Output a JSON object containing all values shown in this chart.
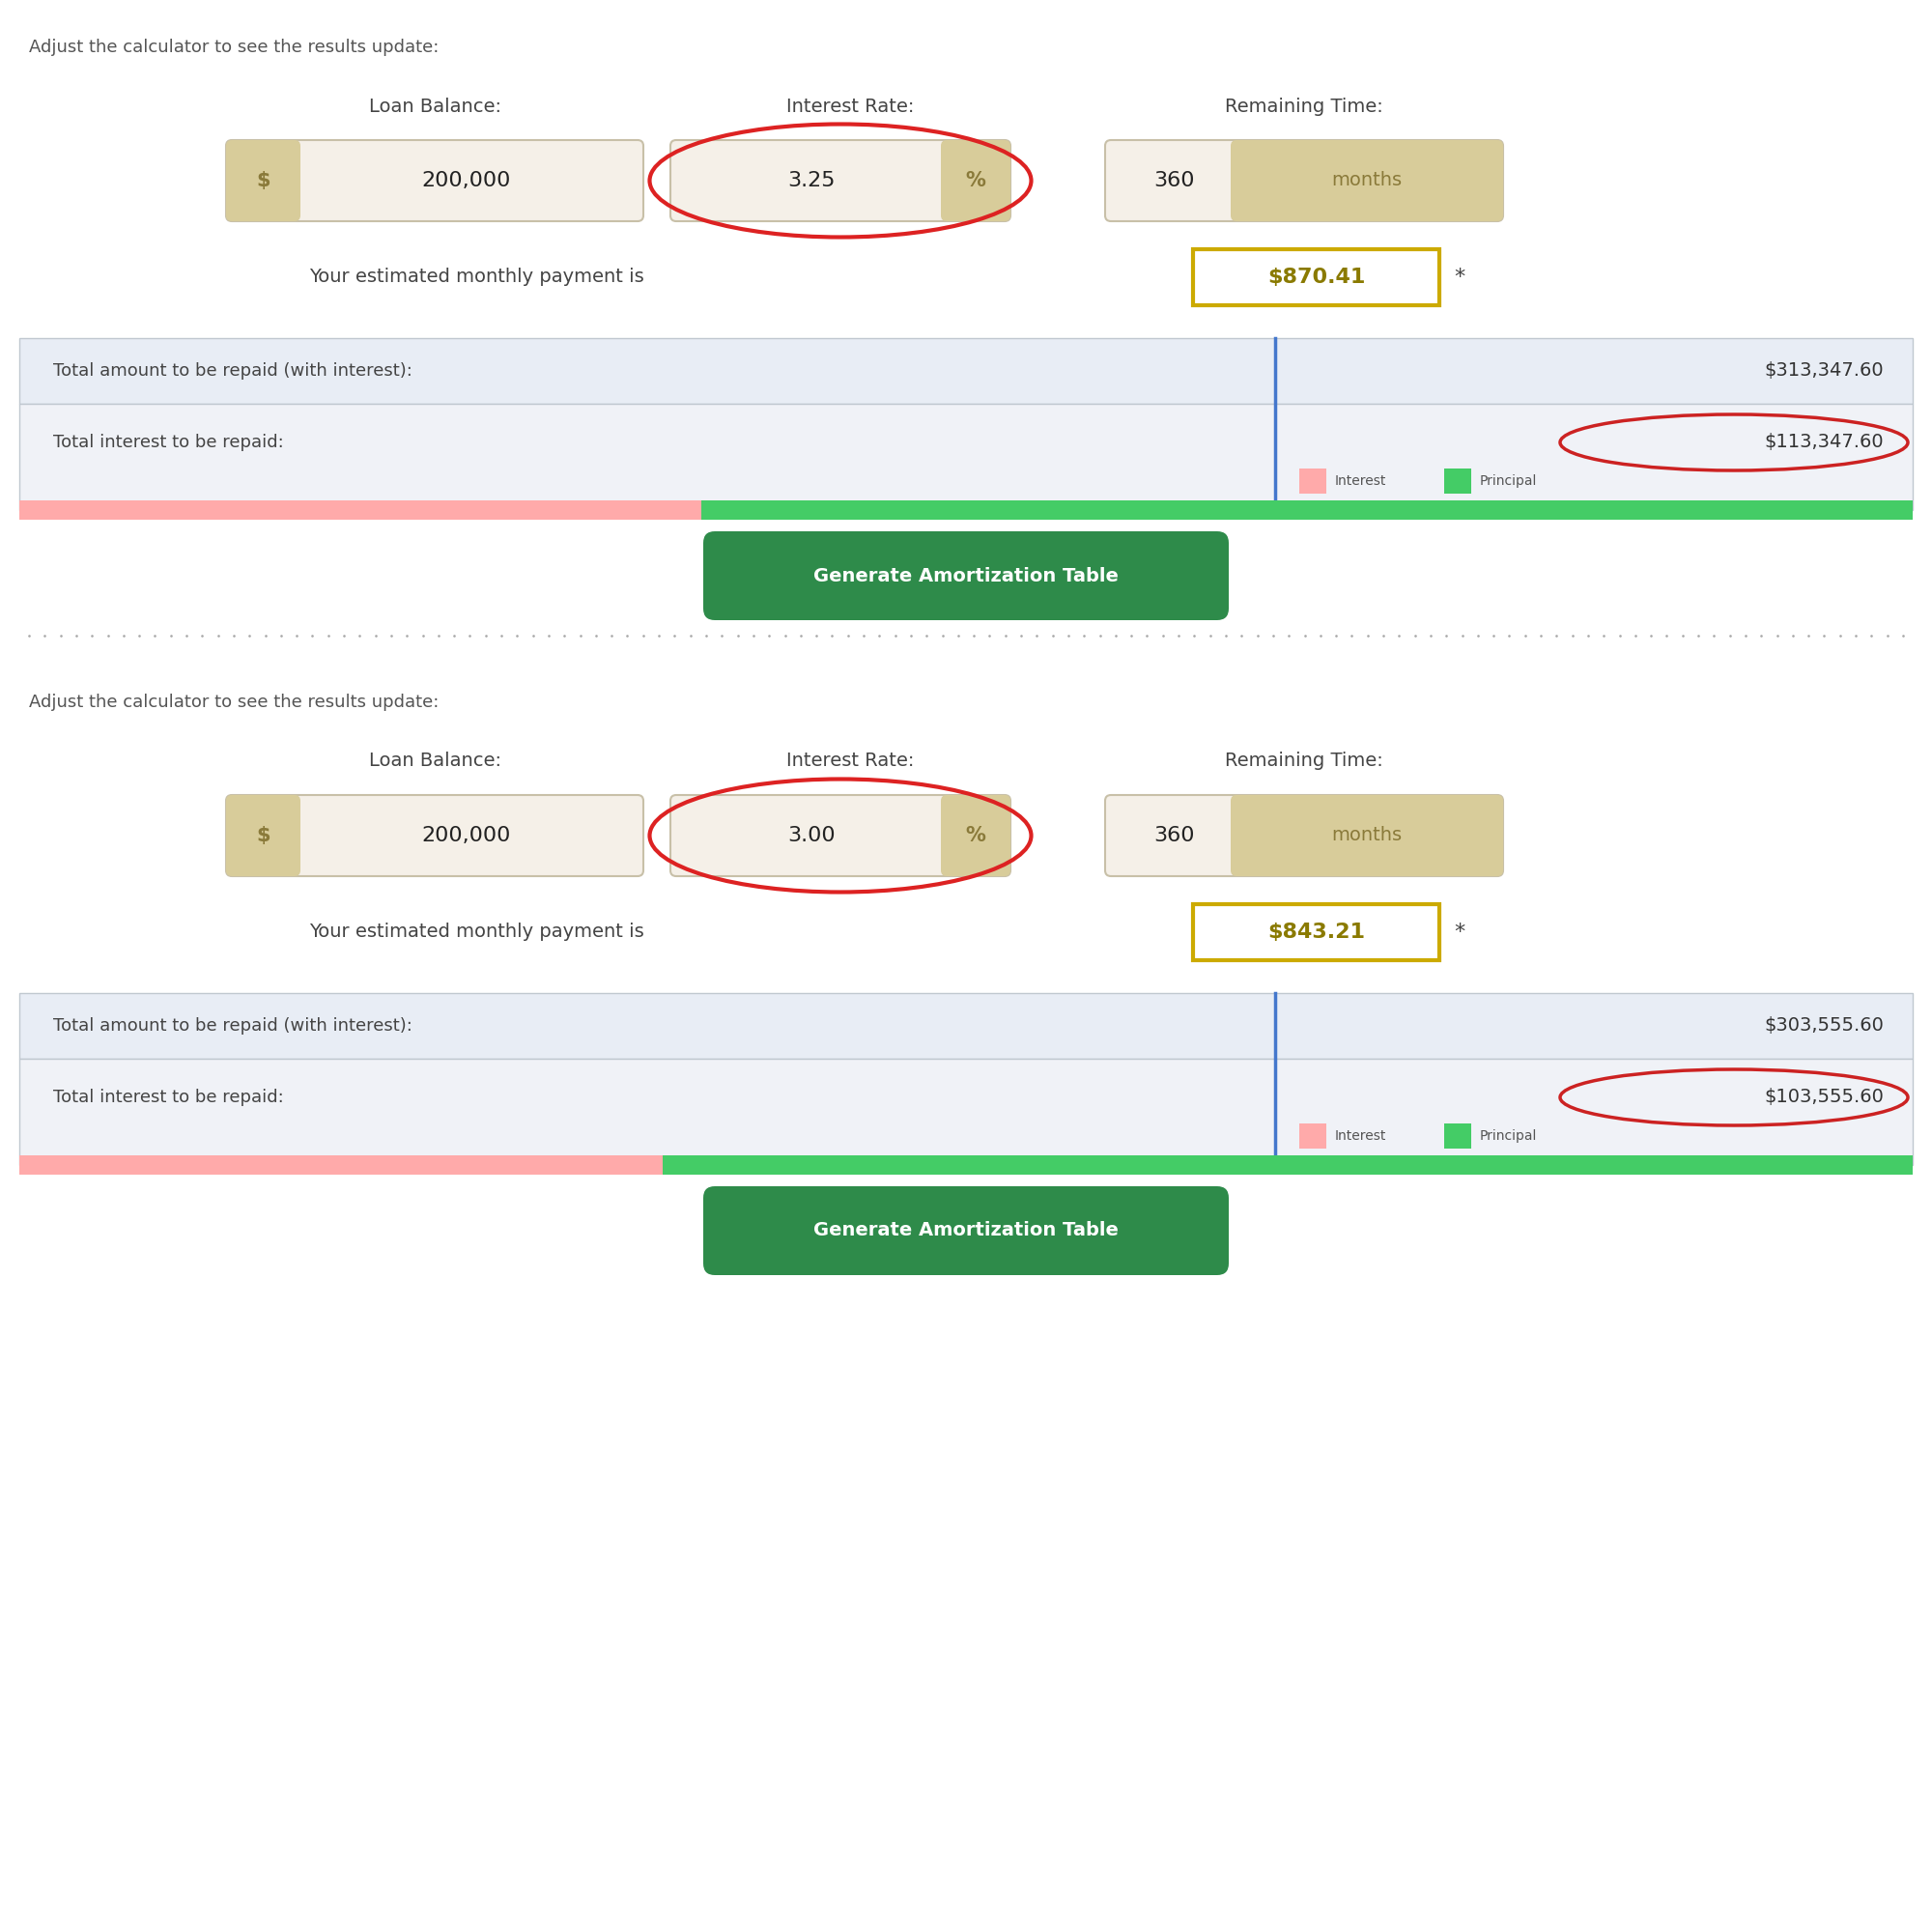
{
  "section1": {
    "header_text": "Adjust the calculator to see the results update:",
    "label_loan": "Loan Balance:",
    "label_rate": "Interest Rate:",
    "label_time": "Remaining Time:",
    "loan_symbol": "$",
    "loan_value": "200,000",
    "rate_value": "3.25",
    "rate_symbol": "%",
    "time_value": "360",
    "time_unit": "months",
    "monthly_text": "Your estimated monthly payment is",
    "monthly_value": "$870.41",
    "total_label": "Total amount to be repaid (with interest):",
    "total_value": "$313,347.60",
    "interest_label": "Total interest to be repaid:",
    "interest_value": "$113,347.60",
    "btn_text": "Generate Amortization Table",
    "interest_pct": 36,
    "principal_pct": 64
  },
  "section2": {
    "header_text": "Adjust the calculator to see the results update:",
    "label_loan": "Loan Balance:",
    "label_rate": "Interest Rate:",
    "label_time": "Remaining Time:",
    "loan_symbol": "$",
    "loan_value": "200,000",
    "rate_value": "3.00",
    "rate_symbol": "%",
    "time_value": "360",
    "time_unit": "months",
    "monthly_text": "Your estimated monthly payment is",
    "monthly_value": "$843.21",
    "total_label": "Total amount to be repaid (with interest):",
    "total_value": "$303,555.60",
    "interest_label": "Total interest to be repaid:",
    "interest_value": "$103,555.60",
    "btn_text": "Generate Amortization Table",
    "interest_pct": 34,
    "principal_pct": 66
  },
  "colors": {
    "bg_color": "#ffffff",
    "header_text": "#555555",
    "label_text": "#444444",
    "input_bg": "#f5f0e8",
    "input_border": "#c8c0a8",
    "symbol_bg": "#d8cc9a",
    "symbol_text": "#8a7a3a",
    "input_text": "#222222",
    "monthly_text": "#444444",
    "monthly_value_bg": "#ffffff",
    "monthly_value_border": "#ccaa00",
    "monthly_value_text": "#8a7a00",
    "table_bg1": "#e8edf5",
    "table_bg2": "#f0f2f7",
    "table_border": "#c0c8d0",
    "table_divider": "#4477cc",
    "table_text": "#444444",
    "table_value": "#333333",
    "interest_circle": "#cc2222",
    "btn_bg": "#2e8b4a",
    "btn_text": "#ffffff",
    "interest_bar": "#ffaaaa",
    "principal_bar": "#44cc66",
    "legend_text": "#555555",
    "red_circle": "#dd2222",
    "yellow_box_border": "#ccaa00",
    "dotted_line": "#aaaaaa"
  }
}
